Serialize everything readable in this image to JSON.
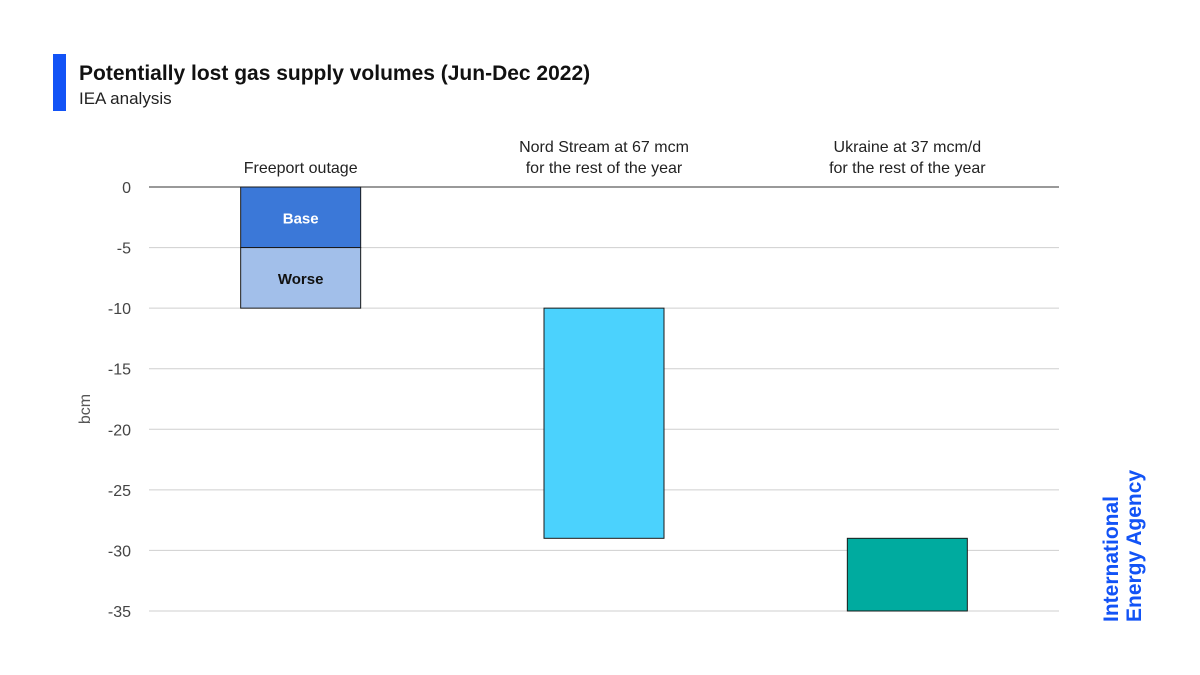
{
  "header": {
    "title": "Potentially lost gas supply volumes (Jun-Dec 2022)",
    "subtitle": "IEA analysis"
  },
  "brand": {
    "line1": "International",
    "line2": "Energy Agency",
    "color": "#1253f6"
  },
  "chart_data": {
    "type": "bar",
    "subtype": "waterfall",
    "ylabel": "bcm",
    "ylim": [
      -35,
      0
    ],
    "yticks": [
      0,
      -5,
      -10,
      -15,
      -20,
      -25,
      -30,
      -35
    ],
    "grid": true,
    "categories": [
      {
        "label_lines": [
          "Freeport outage"
        ]
      },
      {
        "label_lines": [
          "Nord Stream at 67 mcm",
          "for the rest of the year"
        ]
      },
      {
        "label_lines": [
          "Ukraine at 37 mcm/d",
          "for the rest of the year"
        ]
      }
    ],
    "bars": [
      {
        "category": 0,
        "name": "Base",
        "from": 0,
        "to": -5,
        "value": -5,
        "color": "#3b78d8",
        "label": "Base",
        "label_color": "#ffffff"
      },
      {
        "category": 0,
        "name": "Worse",
        "from": -5,
        "to": -10,
        "value": -5,
        "color": "#a2bfea",
        "label": "Worse",
        "label_color": "#111111"
      },
      {
        "category": 1,
        "from": -10,
        "to": -29,
        "value": -19,
        "color": "#4bd2fd"
      },
      {
        "category": 2,
        "from": -29,
        "to": -35,
        "value": -6,
        "color": "#00ab9f"
      }
    ]
  }
}
